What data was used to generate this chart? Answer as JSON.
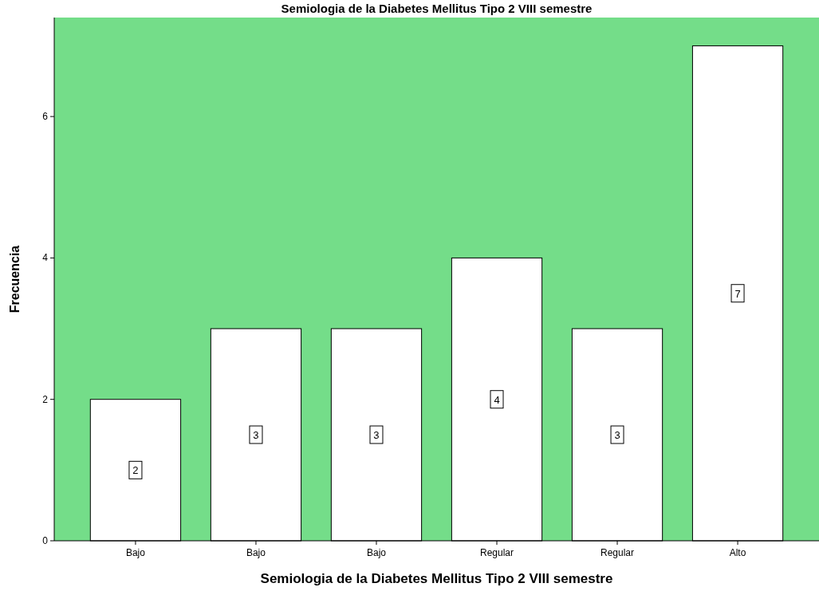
{
  "chart_data": {
    "type": "bar",
    "title": "Semiologia de la Diabetes Mellitus Tipo 2 VIII semestre",
    "xlabel": "Semiologia de la Diabetes Mellitus Tipo 2 VIII semestre",
    "ylabel": "Frecuencia",
    "categories": [
      "Bajo",
      "Bajo",
      "Bajo",
      "Regular",
      "Regular",
      "Alto"
    ],
    "values": [
      2,
      3,
      3,
      4,
      3,
      7
    ],
    "color": "#ffffff",
    "ylim": [
      0,
      7.4
    ],
    "yticks": [
      0,
      2,
      4,
      6
    ],
    "data_labels": true
  }
}
